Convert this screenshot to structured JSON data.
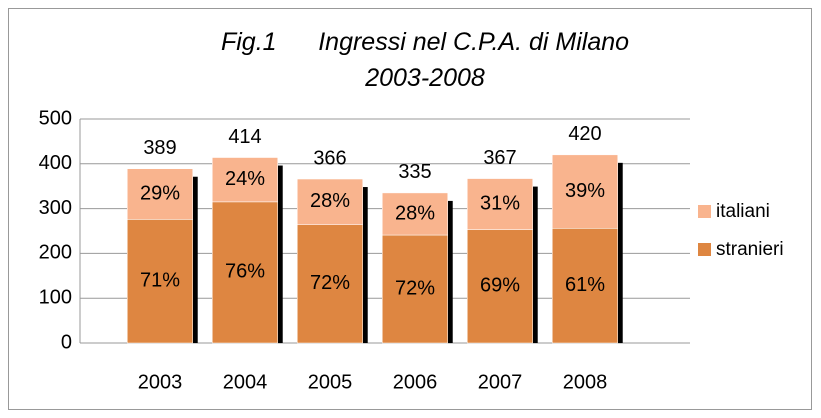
{
  "chart_data": {
    "type": "stacked_bar",
    "title": "Fig.1      Ingressi nel C.P.A. di Milano   2003-2008",
    "categories": [
      "2003",
      "2004",
      "2005",
      "2006",
      "2007",
      "2008"
    ],
    "series": [
      {
        "name": "stranieri",
        "color": "#de8641",
        "values": [
          276,
          315,
          264,
          241,
          253,
          256
        ],
        "share_labels": [
          "71%",
          "76%",
          "72%",
          "72%",
          "69%",
          "61%"
        ]
      },
      {
        "name": "italiani",
        "color": "#f9b48e",
        "values": [
          113,
          99,
          102,
          94,
          114,
          164
        ],
        "share_labels": [
          "29%",
          "24%",
          "28%",
          "28%",
          "31%",
          "39%"
        ]
      }
    ],
    "totals": [
      389,
      414,
      366,
      335,
      367,
      420
    ],
    "ylim": [
      0,
      500
    ],
    "yticks": [
      0,
      100,
      200,
      300,
      400,
      500
    ],
    "grid": true
  }
}
